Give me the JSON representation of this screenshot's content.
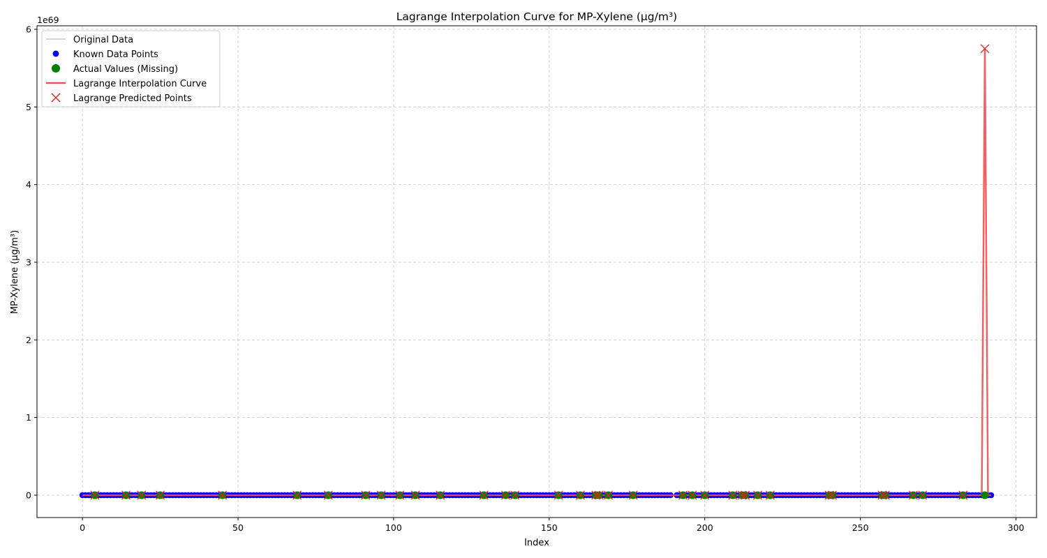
{
  "chart_data": {
    "type": "line",
    "title": "Lagrange Interpolation Curve for MP-Xylene (µg/m³)",
    "xlabel": "Index",
    "ylabel": "MP-Xylene (µg/m³)",
    "y_offset_text": "1e69",
    "xlim": [
      -14.6,
      306.6
    ],
    "ylim": [
      -0.288,
      6.045
    ],
    "x_ticks": [
      0,
      50,
      100,
      150,
      200,
      250,
      300
    ],
    "y_ticks": [
      0,
      1,
      2,
      3,
      4,
      5,
      6
    ],
    "grid": true,
    "legend_position": "upper left",
    "known_range": [
      0,
      292
    ],
    "known_gap": [
      189.5,
      190.5
    ],
    "missing_indices": [
      4,
      14,
      19,
      25,
      45,
      69,
      79,
      91,
      96,
      102,
      107,
      115,
      129,
      136,
      139,
      153,
      160,
      165,
      166,
      169,
      177,
      193,
      196,
      200,
      209,
      212,
      213,
      217,
      221,
      240,
      241,
      257,
      258,
      267,
      270,
      283,
      290
    ],
    "spike": {
      "index": 290,
      "predicted_value": 5.75,
      "actual_value": 0
    },
    "series": [
      {
        "name": "Original Data",
        "color": "#a9a9a9",
        "style": "thin-line"
      },
      {
        "name": "Known Data Points",
        "color": "#0000ff",
        "style": "dot"
      },
      {
        "name": "Actual Values (Missing)",
        "color": "#008000",
        "style": "big-dot"
      },
      {
        "name": "Lagrange Interpolation Curve",
        "color": "#f05050",
        "style": "line"
      },
      {
        "name": "Lagrange Predicted Points",
        "color": "#e0201e",
        "style": "x-marker"
      }
    ]
  }
}
